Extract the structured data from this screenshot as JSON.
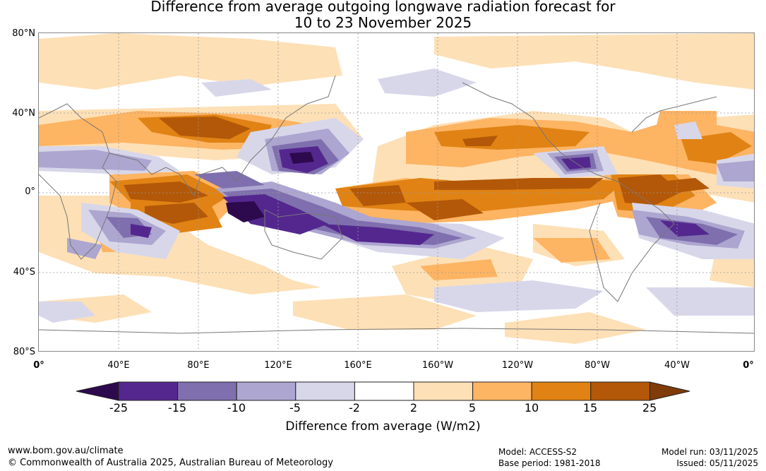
{
  "title": {
    "line1": "Difference from average outgoing longwave radiation forecast for",
    "line2": "10 to 23 November 2025"
  },
  "map": {
    "lat_labels": [
      "80°N",
      "40°N",
      "0°",
      "40°S",
      "80°S"
    ],
    "lon_labels": [
      "0°",
      "40°E",
      "80°E",
      "120°E",
      "160°E",
      "160°W",
      "120°W",
      "80°W",
      "40°W",
      "0°"
    ]
  },
  "colorbar": {
    "ticks": [
      "-25",
      "-15",
      "-10",
      "-5",
      "-2",
      "2",
      "5",
      "10",
      "15",
      "25"
    ],
    "label": "Difference from average (W/m2)",
    "colors": [
      "#2d0a4e",
      "#54278f",
      "#7f6fae",
      "#ada6d0",
      "#d8d7ea",
      "#ffffff",
      "#fde0b6",
      "#fdb463",
      "#e08314",
      "#b35808",
      "#7f3b08"
    ]
  },
  "footer": {
    "website": "www.bom.gov.au/climate",
    "copyright": "© Commonwealth of Australia 2025, Australian Bureau of Meteorology",
    "model": "Model: ACCESS-S2",
    "base_period": "Base period: 1981-2018",
    "model_run": "Model run: 03/11/2025",
    "issued": "Issued: 05/11/2025"
  }
}
